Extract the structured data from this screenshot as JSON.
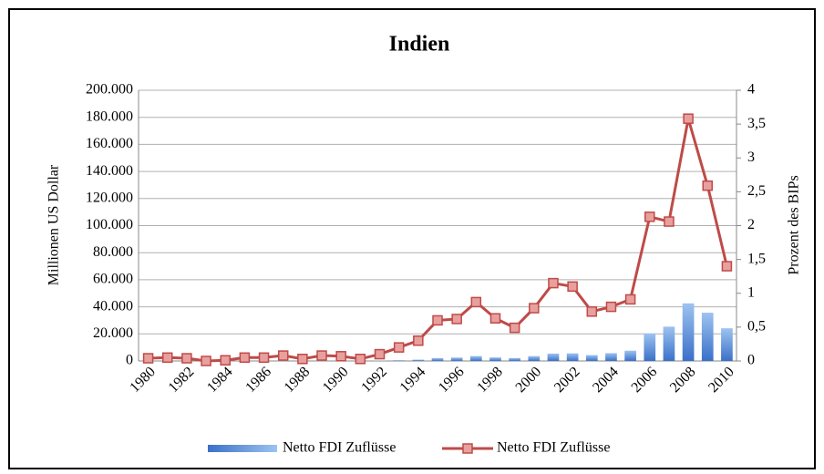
{
  "chart_data": {
    "type": "bar-line",
    "title": "Indien",
    "y_label": "Millionen US Dollar",
    "y2_label": "Prozent des BIPs",
    "categories": [
      "1980",
      null,
      "1982",
      null,
      "1984",
      null,
      "1986",
      null,
      "1988",
      null,
      "1990",
      null,
      "1992",
      null,
      "1994",
      null,
      "1996",
      null,
      "1998",
      null,
      "2000",
      null,
      "2002",
      null,
      "2004",
      null,
      "2006",
      null,
      "2008",
      null,
      "2010"
    ],
    "series": [
      {
        "name": "Netto FDI Zuflüsse",
        "type": "bar",
        "color": "#4f81bd",
        "values": [
          79,
          92,
          72,
          6,
          19,
          106,
          118,
          212,
          91,
          252,
          237,
          75,
          252,
          532,
          974,
          2151,
          2525,
          3619,
          2633,
          2168,
          3584,
          5472,
          5626,
          4323,
          5771,
          7606,
          20336,
          25350,
          42546,
          35649,
          24159
        ]
      },
      {
        "name": "Netto FDI Zuflüsse",
        "type": "line",
        "axis": "y2",
        "color": "#be4b48",
        "values": [
          0.04,
          0.05,
          0.04,
          0.0,
          0.01,
          0.05,
          0.05,
          0.08,
          0.03,
          0.08,
          0.07,
          0.03,
          0.1,
          0.2,
          0.3,
          0.6,
          0.62,
          0.87,
          0.63,
          0.49,
          0.78,
          1.15,
          1.1,
          0.73,
          0.8,
          0.91,
          2.13,
          2.06,
          3.58,
          2.59,
          1.4
        ]
      }
    ],
    "ylim": [
      0,
      200000
    ],
    "yticks": [
      0,
      {
        "value": 20000,
        "label": "20.000"
      },
      {
        "value": 40000,
        "label": "40.000"
      },
      {
        "value": 60000,
        "label": "60.000"
      },
      {
        "value": 80000,
        "label": "80.000"
      },
      {
        "value": 100000,
        "label": "100.000"
      },
      {
        "value": 120000,
        "label": "120.000"
      },
      {
        "value": 140000,
        "label": "140.000"
      },
      {
        "value": 160000,
        "label": "160.000"
      },
      {
        "value": 180000,
        "label": "180.000"
      },
      {
        "value": 200000,
        "label": "200.000"
      }
    ],
    "y2lim": [
      0,
      4
    ],
    "y2ticks": [
      0,
      {
        "value": 0.5,
        "label": "0,5"
      },
      1,
      {
        "value": 1.5,
        "label": "1,5"
      },
      2,
      {
        "value": 2.5,
        "label": "2,5"
      },
      3,
      {
        "value": 3.5,
        "label": "3,5"
      },
      4
    ],
    "grid": true,
    "legend": "bottom"
  }
}
